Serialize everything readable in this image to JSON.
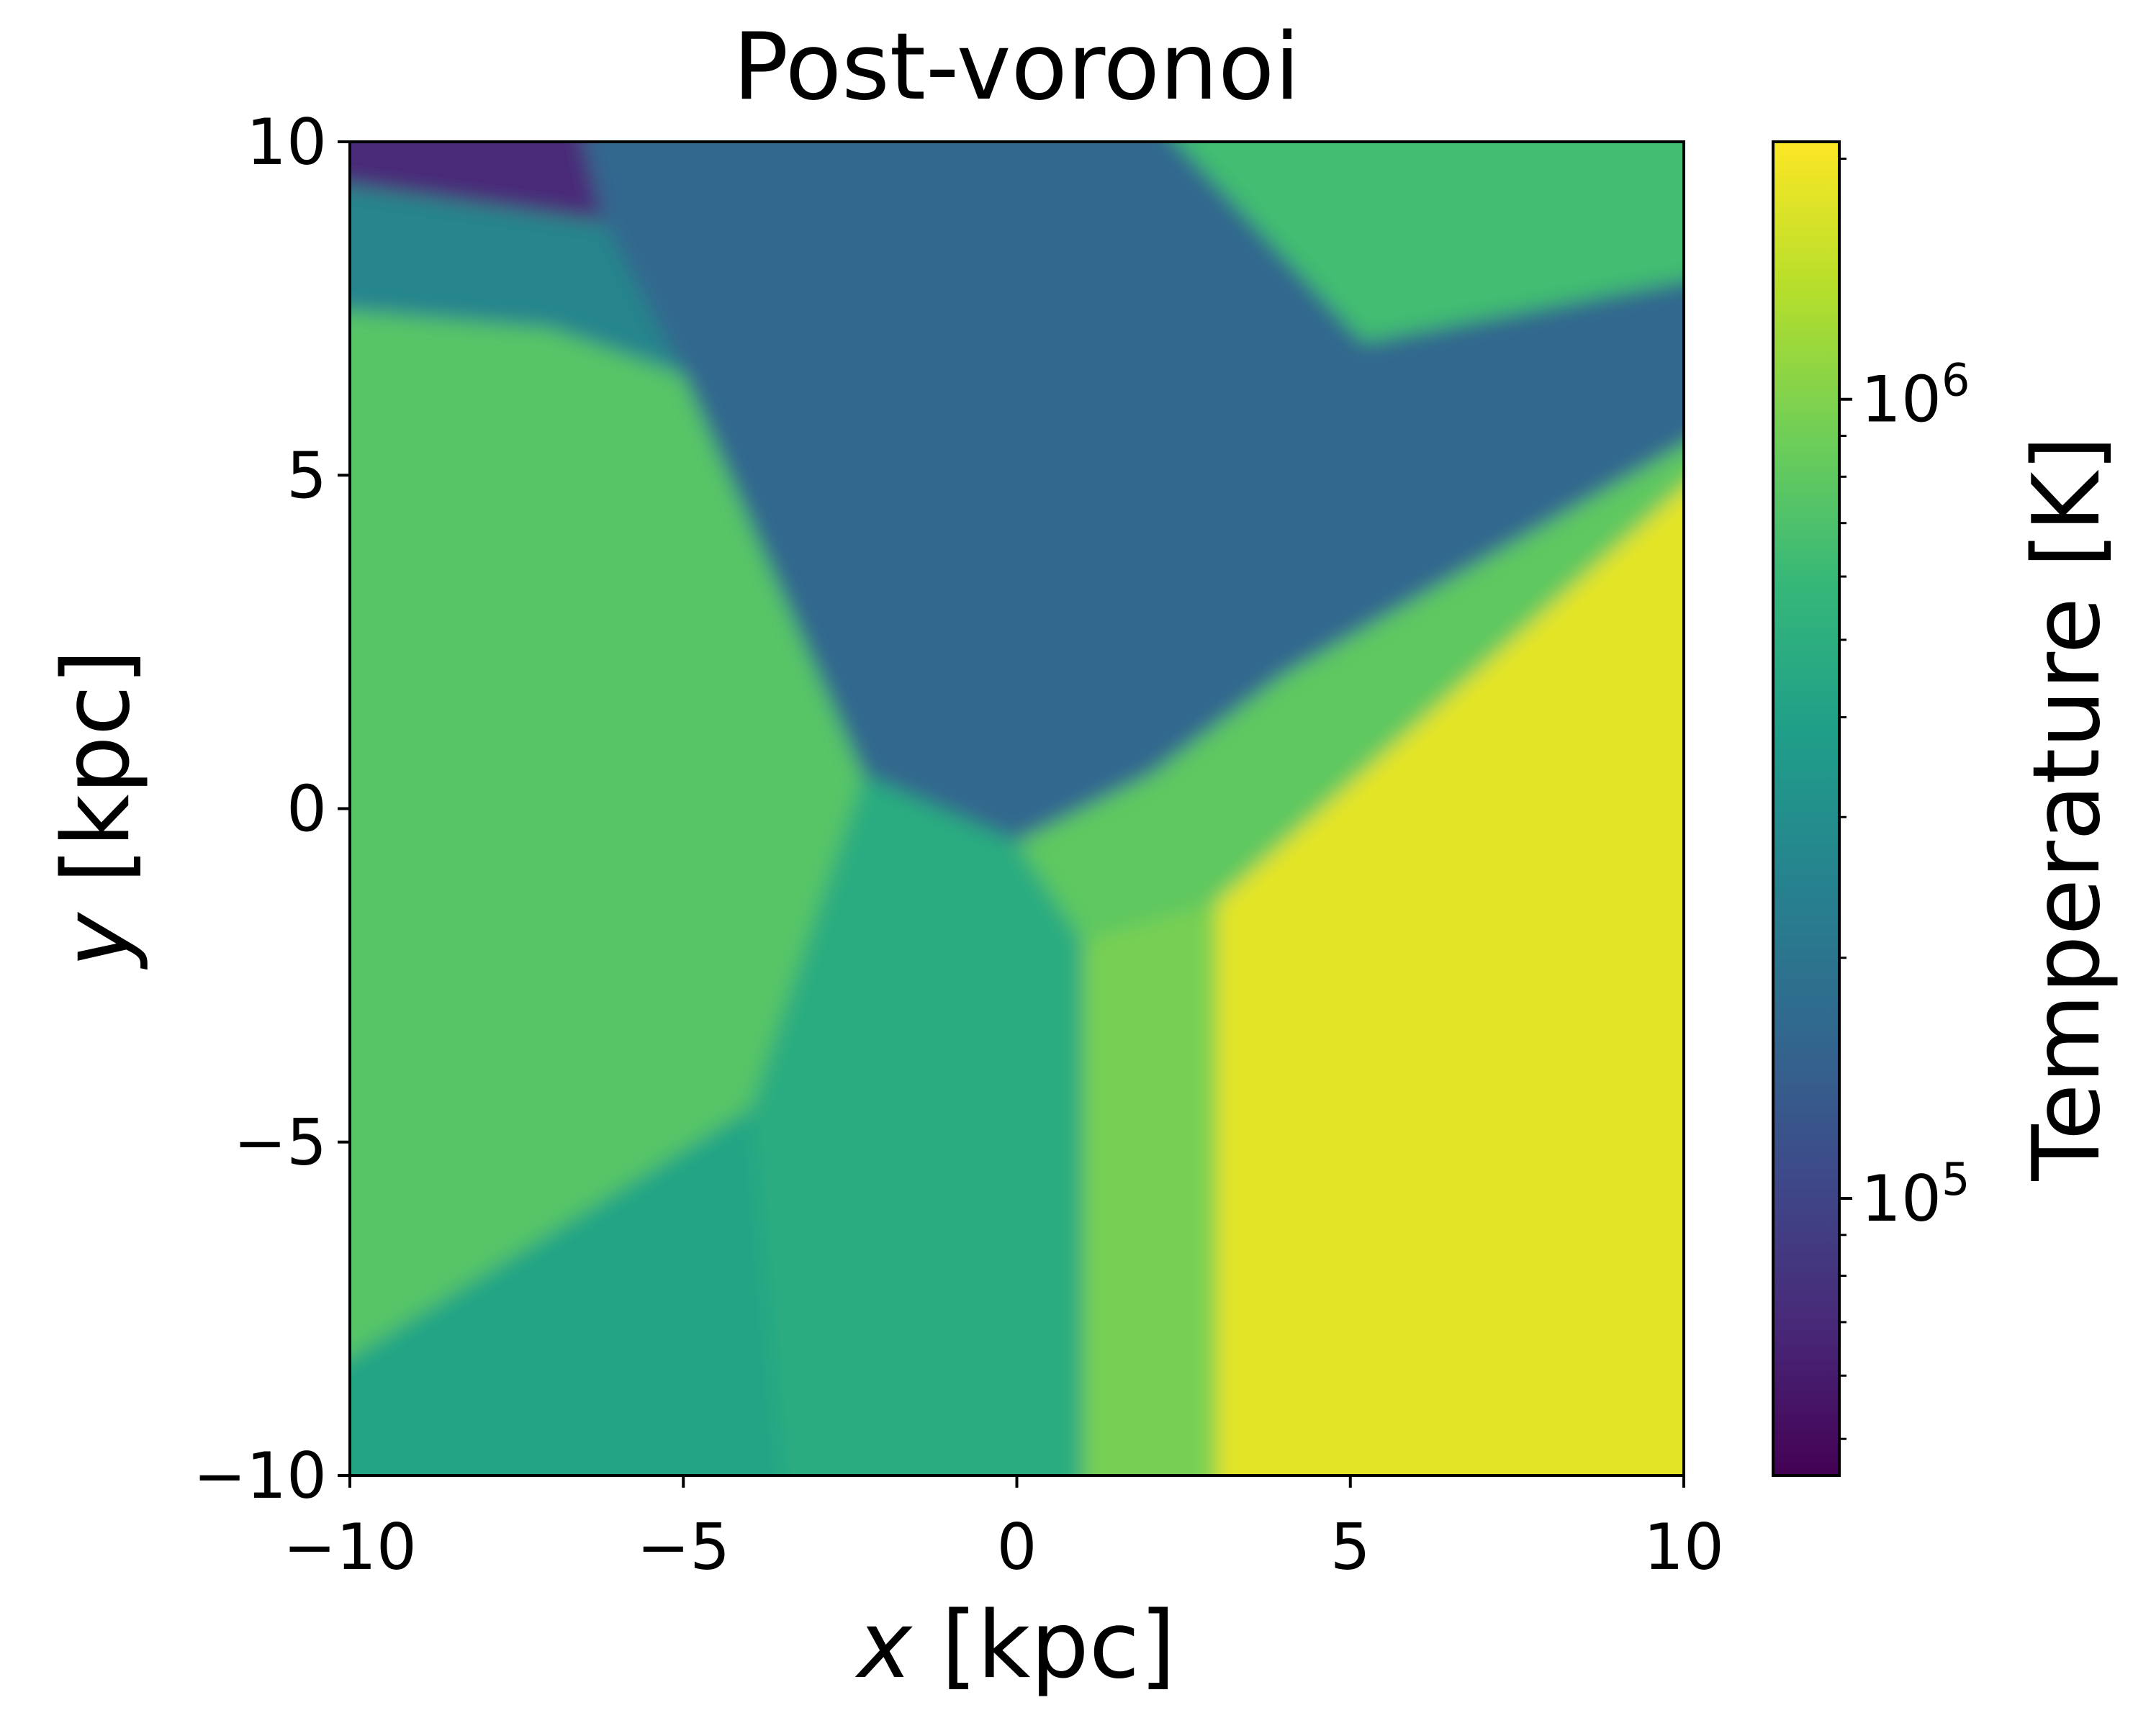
{
  "chart_data": {
    "type": "heatmap",
    "title": "Post-voronoi",
    "xlabel_var": "x",
    "xlabel_unit": " [kpc]",
    "ylabel_var": "y",
    "ylabel_unit": " [kpc]",
    "xlim": [
      -10,
      10
    ],
    "ylim": [
      -10,
      10
    ],
    "x_ticks": [
      -10,
      -5,
      0,
      5,
      10
    ],
    "y_ticks": [
      -10,
      -5,
      0,
      5,
      10
    ],
    "x_tick_labels": [
      "−10",
      "−5",
      "0",
      "5",
      "10"
    ],
    "y_tick_labels": [
      "−10",
      "−5",
      "0",
      "5",
      "10"
    ],
    "colormap": "viridis",
    "colorbar": {
      "label": "Temperature [K]",
      "scale": "log",
      "vmin": 45000,
      "vmax": 2100000,
      "major_ticks": [
        100000,
        1000000
      ],
      "major_tick_labels": [
        {
          "base": "10",
          "exp": "5"
        },
        {
          "base": "10",
          "exp": "6"
        }
      ],
      "minor_ticks": [
        50000,
        60000,
        70000,
        80000,
        90000,
        200000,
        300000,
        400000,
        500000,
        600000,
        700000,
        800000,
        900000,
        2000000
      ]
    },
    "regions": [
      {
        "name": "top-left-cold-corner",
        "polygon": [
          [
            -10,
            10
          ],
          [
            -6.6,
            10
          ],
          [
            -6.2,
            8.8
          ],
          [
            -10,
            9.4
          ]
        ],
        "temperature_K": 70000
      },
      {
        "name": "upper-left-wedge",
        "polygon": [
          [
            -10,
            9.4
          ],
          [
            -6.2,
            8.8
          ],
          [
            -5,
            6.5
          ],
          [
            -7,
            7.2
          ],
          [
            -10,
            7.5
          ]
        ],
        "temperature_K": 260000
      },
      {
        "name": "left-wedge",
        "polygon": [
          [
            -10,
            7.5
          ],
          [
            -7,
            7.2
          ],
          [
            -5,
            6.5
          ],
          [
            -2.3,
            0.5
          ],
          [
            -4,
            -4.5
          ],
          [
            -10,
            -8.5
          ]
        ],
        "temperature_K": 750000
      },
      {
        "name": "central-cold-basin",
        "polygon": [
          [
            -6.2,
            8.8
          ],
          [
            -6.6,
            10
          ],
          [
            2,
            10
          ],
          [
            5.2,
            7
          ],
          [
            10,
            8
          ],
          [
            10,
            5.7
          ],
          [
            4,
            2
          ],
          [
            2,
            0.5
          ],
          [
            0,
            -0.5
          ],
          [
            -2.3,
            0.5
          ],
          [
            -5,
            6.5
          ]
        ],
        "temperature_K": 160000
      },
      {
        "name": "top-right-wedge",
        "polygon": [
          [
            2,
            10
          ],
          [
            10,
            10
          ],
          [
            10,
            8
          ],
          [
            5.2,
            7
          ]
        ],
        "temperature_K": 650000
      },
      {
        "name": "center-left-cell",
        "polygon": [
          [
            -2.3,
            0.5
          ],
          [
            0,
            -0.5
          ],
          [
            1,
            -2
          ],
          [
            1,
            -10
          ],
          [
            -3.5,
            -10
          ],
          [
            -4,
            -4.5
          ]
        ],
        "temperature_K": 480000
      },
      {
        "name": "lower-left-cell",
        "polygon": [
          [
            -10,
            -8.5
          ],
          [
            -4,
            -4.5
          ],
          [
            -3.5,
            -10
          ],
          [
            -10,
            -10
          ]
        ],
        "temperature_K": 420000
      },
      {
        "name": "shock-band",
        "polygon": [
          [
            0,
            -0.5
          ],
          [
            2,
            0.5
          ],
          [
            4,
            2
          ],
          [
            10,
            5.7
          ],
          [
            10,
            5.2
          ],
          [
            3,
            -1.4
          ],
          [
            1,
            -2
          ]
        ],
        "temperature_K": 800000
      },
      {
        "name": "right-hot-region",
        "polygon": [
          [
            3,
            -1.4
          ],
          [
            10,
            5.2
          ],
          [
            10,
            -10
          ],
          [
            3,
            -10
          ]
        ],
        "temperature_K": 1800000
      },
      {
        "name": "lower-middle-cell",
        "polygon": [
          [
            1,
            -2
          ],
          [
            3,
            -1.4
          ],
          [
            3,
            -10
          ],
          [
            1,
            -10
          ]
        ],
        "temperature_K": 950000
      }
    ]
  }
}
